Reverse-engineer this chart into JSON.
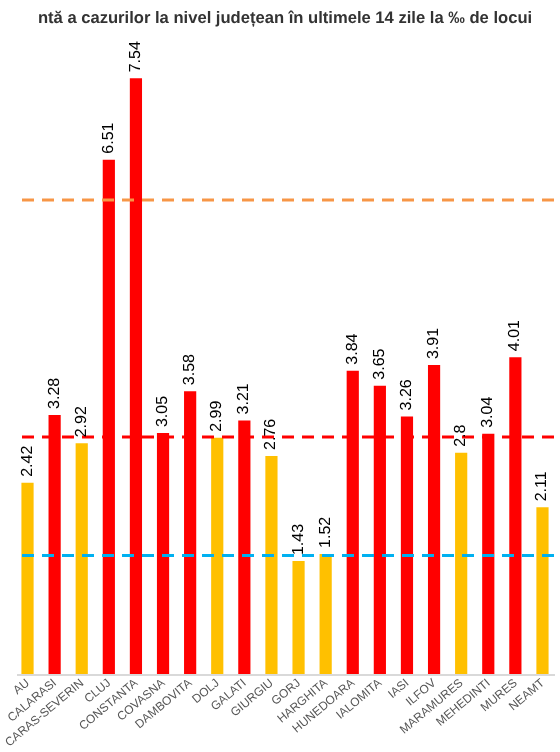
{
  "chart_data": {
    "type": "bar",
    "title": "ntă a cazurilor la nivel județean în ultimele 14 zile la ‰ de locui",
    "categories": [
      "AU",
      "CALARASI",
      "CARAS-SEVERIN",
      "CLUJ",
      "CONSTANTA",
      "COVASNA",
      "DAMBOVITA",
      "DOLJ",
      "GALATI",
      "GIURGIU",
      "GORJ",
      "HARGHITA",
      "HUNEDOARA",
      "IALOMITA",
      "IASI",
      "ILFOV",
      "MARAMURES",
      "MEHEDINTI",
      "MURES",
      "NEAMT"
    ],
    "values": [
      2.42,
      3.28,
      2.92,
      6.51,
      7.54,
      3.05,
      3.58,
      2.99,
      3.21,
      2.76,
      1.43,
      1.52,
      3.84,
      3.65,
      3.26,
      3.91,
      2.8,
      3.04,
      4.01,
      2.11
    ],
    "colors": [
      "#ffc000",
      "#ff0000",
      "#ffc000",
      "#ff0000",
      "#ff0000",
      "#ff0000",
      "#ff0000",
      "#ffc000",
      "#ff0000",
      "#ffc000",
      "#ffc000",
      "#ffc000",
      "#ff0000",
      "#ff0000",
      "#ff0000",
      "#ff0000",
      "#ffc000",
      "#ff0000",
      "#ff0000",
      "#ffc000"
    ],
    "tick_labels": "x",
    "data_labels": true,
    "ref_lines": [
      {
        "axis": "y",
        "value": 6,
        "color": "#f79646",
        "line_style": "dashed"
      },
      {
        "axis": "y",
        "value": 3,
        "color": "#ff0000",
        "line_style": "dashed"
      },
      {
        "axis": "y",
        "value": 1.5,
        "color": "#00b0f0",
        "line_style": "dashed"
      }
    ]
  }
}
